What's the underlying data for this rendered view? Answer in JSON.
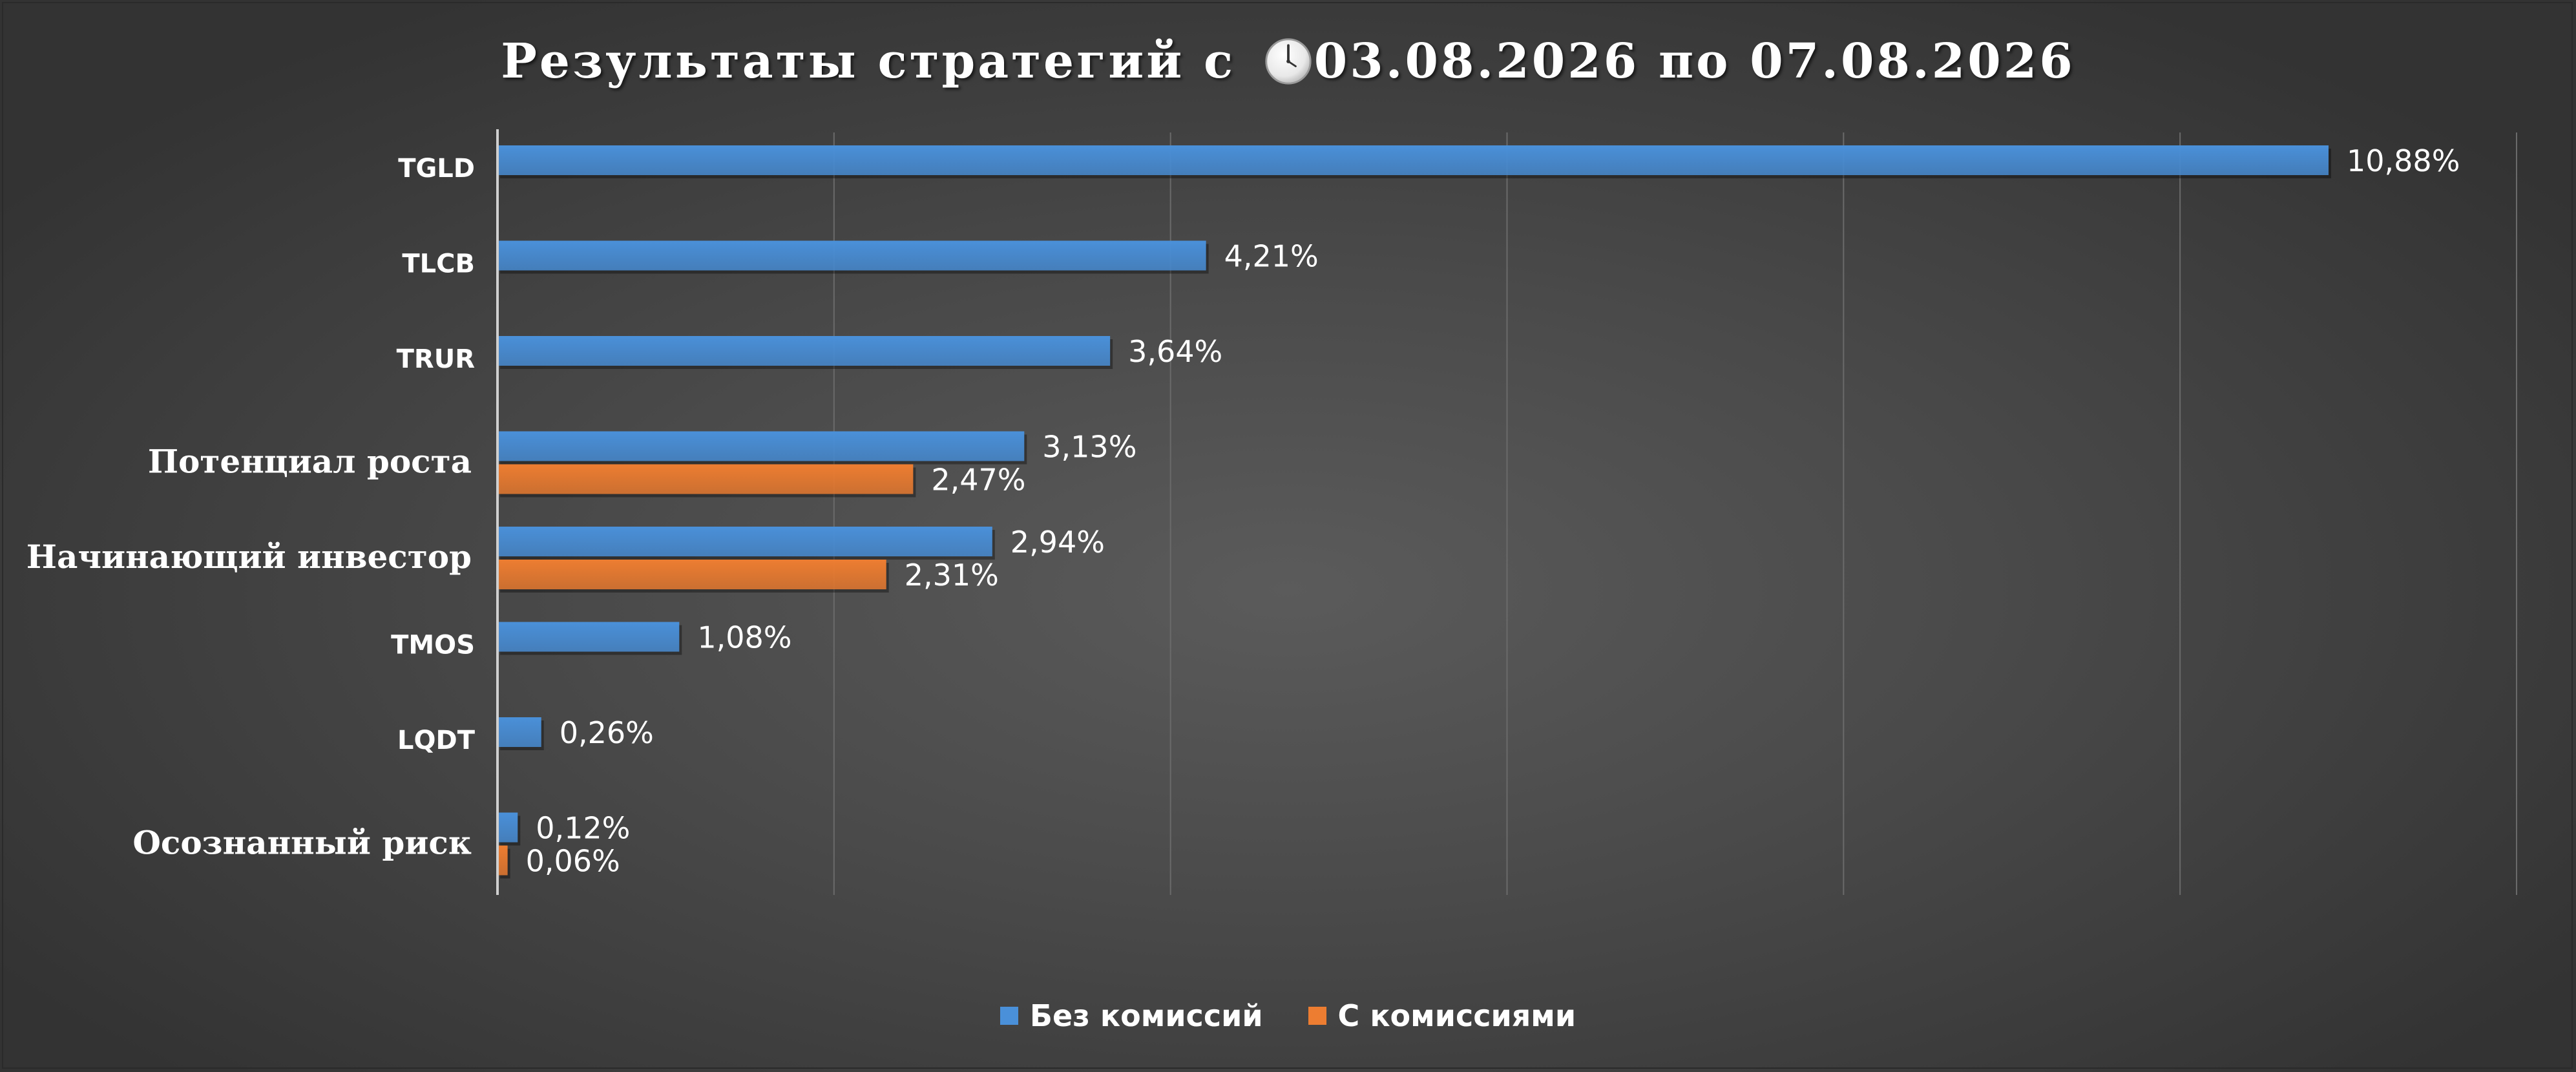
{
  "chart_data": {
    "type": "bar",
    "orientation": "horizontal",
    "title_parts": {
      "prefix": "Результаты стратегий с ",
      "date_from": "03.08.2026",
      "middle": " по ",
      "date_to": "07.08.2026"
    },
    "title_icon": "clock-icon",
    "categories": [
      "TGLD",
      "TLCB",
      "TRUR",
      "Потенциал роста",
      "Начинающий инвестор",
      "TMOS",
      "LQDT",
      "Осознанный риск"
    ],
    "category_styles": [
      "ticker",
      "ticker",
      "ticker",
      "strategy",
      "strategy",
      "ticker",
      "ticker",
      "strategy"
    ],
    "series": [
      {
        "name": "Без комиссий",
        "color": "#4a90d9",
        "values": [
          10.88,
          4.21,
          3.64,
          3.13,
          2.94,
          1.08,
          0.26,
          0.12
        ],
        "labels": [
          "10,88%",
          "4,21%",
          "3,64%",
          "3,13%",
          "2,94%",
          "1,08%",
          "0,26%",
          "0,12%"
        ]
      },
      {
        "name": "С комиссиями",
        "color": "#ed7d31",
        "values": [
          null,
          null,
          null,
          2.47,
          2.31,
          null,
          null,
          0.06
        ],
        "labels": [
          "",
          "",
          "",
          "2,47%",
          "2,31%",
          "",
          "",
          "0,06%"
        ]
      }
    ],
    "xlim": [
      0,
      12
    ],
    "grid": true,
    "legend_position": "bottom"
  }
}
